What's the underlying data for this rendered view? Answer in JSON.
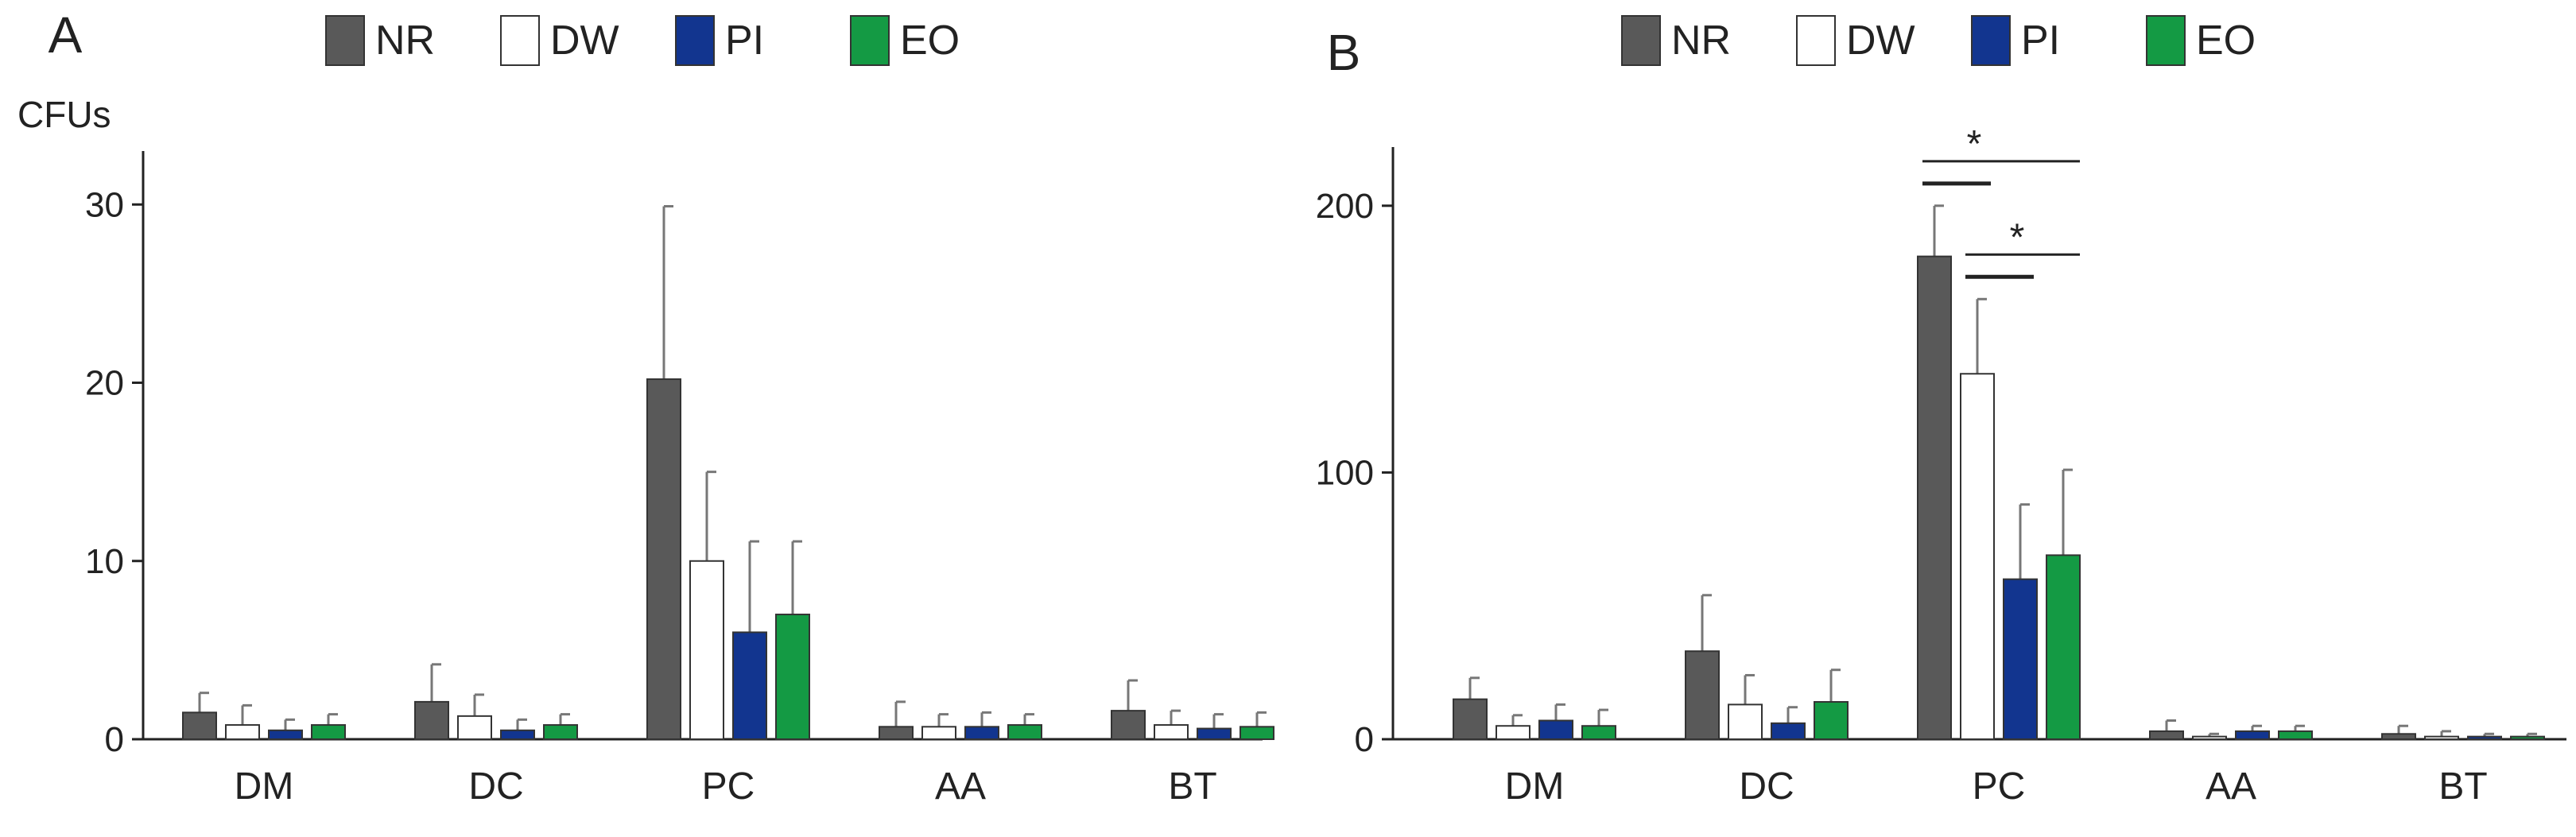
{
  "colors": {
    "NR": "#595959",
    "DW": "#ffffff",
    "PI": "#12358f",
    "EO": "#149a44",
    "axis": "#222222",
    "error": "#777777"
  },
  "chart_data": [
    {
      "panel": "A",
      "type": "bar",
      "ylabel": "CFUs",
      "ylim": [
        0,
        33
      ],
      "yticks": [
        0,
        10,
        20,
        30
      ],
      "categories": [
        "DM",
        "DC",
        "PC",
        "AA",
        "BT"
      ],
      "series": [
        {
          "name": "NR",
          "values": [
            1.5,
            2.1,
            20.2,
            0.7,
            1.6
          ],
          "errors": [
            1.1,
            2.1,
            9.7,
            1.4,
            1.7
          ]
        },
        {
          "name": "DW",
          "values": [
            0.8,
            1.3,
            10.0,
            0.7,
            0.8
          ],
          "errors": [
            1.1,
            1.2,
            5.0,
            0.7,
            0.8
          ]
        },
        {
          "name": "PI",
          "values": [
            0.5,
            0.5,
            6.0,
            0.7,
            0.6
          ],
          "errors": [
            0.6,
            0.6,
            5.1,
            0.8,
            0.8
          ]
        },
        {
          "name": "EO",
          "values": [
            0.8,
            0.8,
            7.0,
            0.8,
            0.7
          ],
          "errors": [
            0.6,
            0.6,
            4.1,
            0.6,
            0.8
          ]
        }
      ],
      "significance": []
    },
    {
      "panel": "B",
      "type": "bar",
      "ylabel": "",
      "ylim": [
        0,
        222
      ],
      "yticks": [
        0,
        100,
        200
      ],
      "categories": [
        "DM",
        "DC",
        "PC",
        "AA",
        "BT"
      ],
      "series": [
        {
          "name": "NR",
          "values": [
            15,
            33,
            181,
            3,
            2
          ],
          "errors": [
            8,
            21,
            19,
            4,
            3
          ]
        },
        {
          "name": "DW",
          "values": [
            5,
            13,
            137,
            1,
            1
          ],
          "errors": [
            4,
            11,
            28,
            1,
            2
          ]
        },
        {
          "name": "PI",
          "values": [
            7,
            6,
            60,
            3,
            1
          ],
          "errors": [
            6,
            6,
            28,
            2,
            1
          ]
        },
        {
          "name": "EO",
          "values": [
            5,
            14,
            69,
            3,
            1
          ],
          "errors": [
            6,
            12,
            32,
            2,
            1
          ]
        }
      ],
      "significance": [
        {
          "category": "PC",
          "from": "NR",
          "to": "EO",
          "inner": "DW",
          "label": "*"
        },
        {
          "category": "PC",
          "from": "DW",
          "to": "EO",
          "inner": "PI",
          "label": "*"
        }
      ]
    }
  ]
}
